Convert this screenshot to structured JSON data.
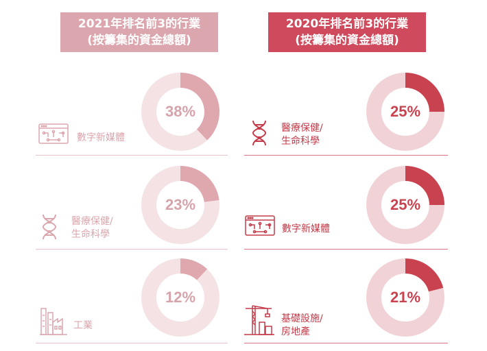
{
  "headers": {
    "y2021": [
      "2021年排名前3的行業",
      "(按籌集的資金總額)"
    ],
    "y2020": [
      "2020年排名前3的行業",
      "(按籌集的資金總額)"
    ]
  },
  "colors": {
    "header_2021": "#dba6ad",
    "header_2020": "#cf4a5c",
    "ring_2021": "#f4e2e4",
    "seg_2021": "#dfa7ae",
    "ring_2020": "#f1d3d7",
    "seg_2020": "#c8434f"
  },
  "rows": [
    {
      "y2021": {
        "industry": [
          "數字新媒體"
        ],
        "icon": "digital-media-icon",
        "share_label": "38%"
      },
      "y2020": {
        "industry": [
          "醫療保健/",
          "生命科學"
        ],
        "icon": "dna-icon",
        "share_label": "25%"
      }
    },
    {
      "y2021": {
        "industry": [
          "醫療保健/",
          "生命科學"
        ],
        "icon": "dna-icon",
        "share_label": "23%"
      },
      "y2020": {
        "industry": [
          "數字新媒體"
        ],
        "icon": "digital-media-icon",
        "share_label": "25%"
      }
    },
    {
      "y2021": {
        "industry": [
          "工業"
        ],
        "icon": "factory-icon",
        "share_label": "12%"
      },
      "y2020": {
        "industry": [
          "基礎設施/",
          "房地產"
        ],
        "icon": "crane-icon",
        "share_label": "21%"
      }
    }
  ],
  "chart_data": [
    {
      "type": "pie",
      "title": "2021年排名前3的行業 (按籌集的資金總額)",
      "categories": [
        "數字新媒體",
        "醫療保健/生命科學",
        "工業"
      ],
      "values": [
        38,
        23,
        12
      ],
      "unit": "%"
    },
    {
      "type": "pie",
      "title": "2020年排名前3的行業 (按籌集的資金總額)",
      "categories": [
        "醫療保健/生命科學",
        "數字新媒體",
        "基礎設施/房地產"
      ],
      "values": [
        25,
        25,
        21
      ],
      "unit": "%"
    }
  ]
}
